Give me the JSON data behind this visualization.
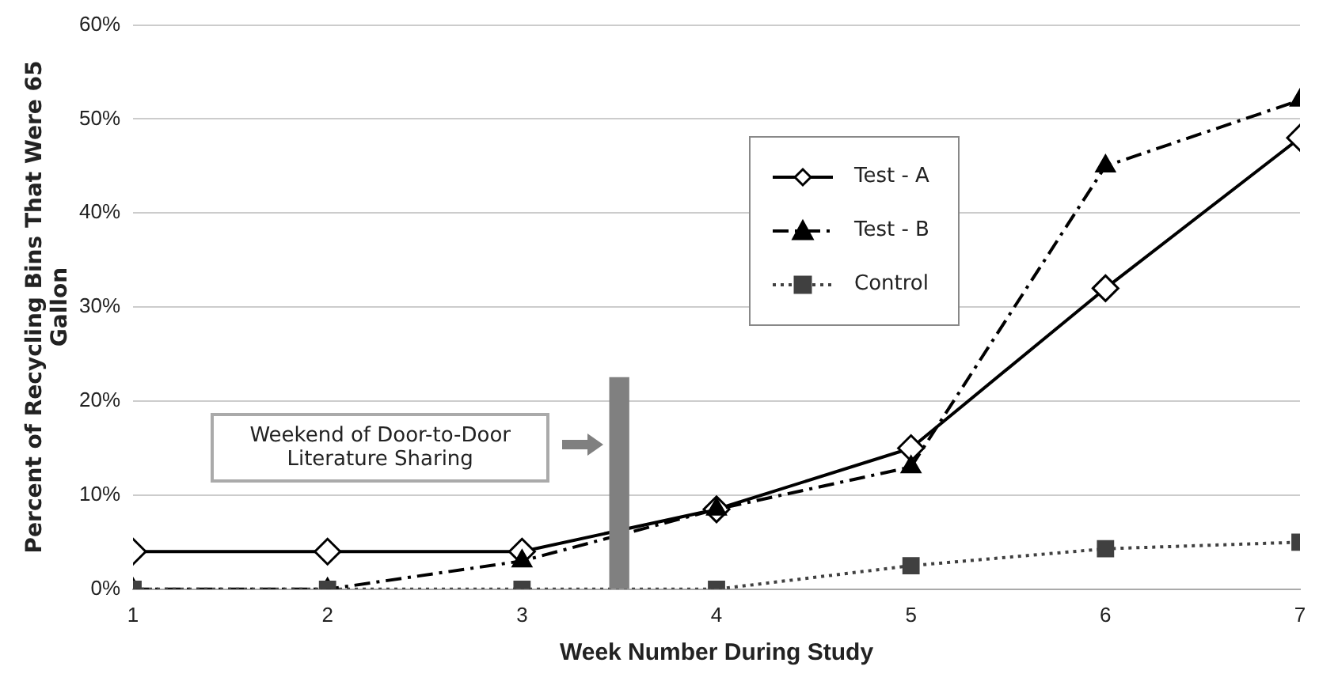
{
  "chart_data": {
    "type": "line",
    "xlabel": "Week Number During Study",
    "ylabel": "Percent of Recycling Bins That Were 65 Gallon",
    "x": [
      1,
      2,
      3,
      4,
      5,
      6,
      7
    ],
    "xlim": [
      1,
      7
    ],
    "xticks": [
      1,
      2,
      3,
      4,
      5,
      6,
      7
    ],
    "ylim": [
      0,
      60
    ],
    "yticks": [
      {
        "value": 0,
        "label": "0%"
      },
      {
        "value": 10,
        "label": "10%"
      },
      {
        "value": 20,
        "label": "20%"
      },
      {
        "value": 30,
        "label": "30%"
      },
      {
        "value": 40,
        "label": "40%"
      },
      {
        "value": 50,
        "label": "50%"
      },
      {
        "value": 60,
        "label": "60%"
      }
    ],
    "grid": "y",
    "legend": "top",
    "series": [
      {
        "name": "Test - A",
        "color": "#000000",
        "marker": "diamond",
        "line_style": "solid",
        "values": [
          4,
          4,
          4,
          8.5,
          15,
          32,
          48
        ]
      },
      {
        "name": "Test - B",
        "color": "#000000",
        "marker": "triangle",
        "line_style": "dashed",
        "values": [
          0,
          0,
          3,
          8.5,
          13,
          45,
          52
        ]
      },
      {
        "name": "Control",
        "color": "#404040",
        "marker": "square",
        "line_style": "dotted",
        "values": [
          0,
          0,
          0,
          0,
          2.5,
          4.3,
          5
        ]
      },
      {
        "type": "bar",
        "color": "#808080",
        "x": [
          3.5
        ],
        "values": [
          22.5
        ]
      }
    ],
    "annotations": [
      "Weekend of Door-to-Door Literature Sharing"
    ]
  }
}
